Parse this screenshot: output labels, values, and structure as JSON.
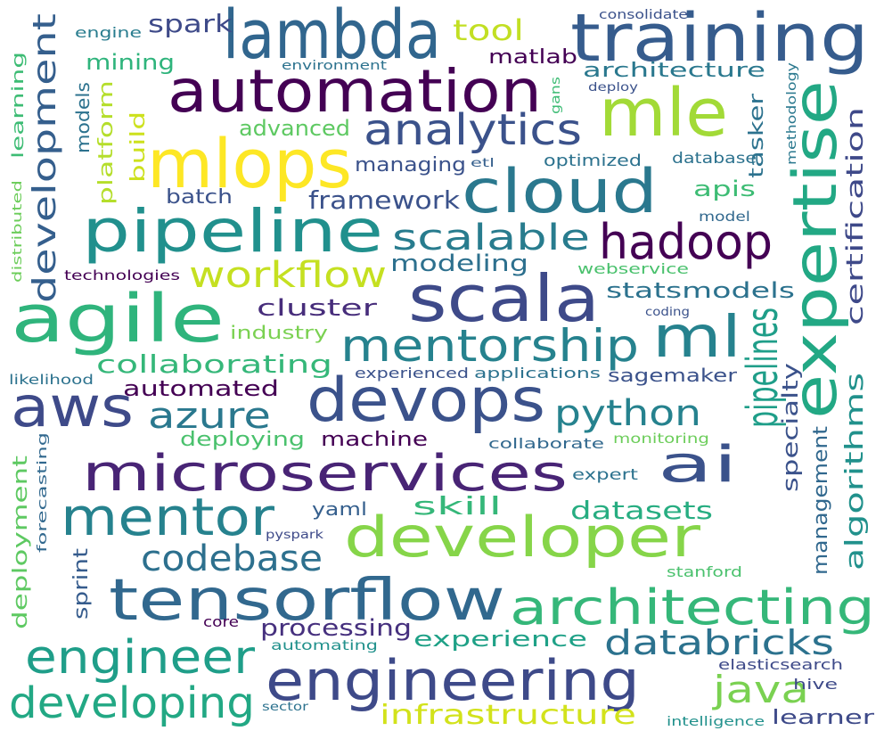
{
  "words": [
    {
      "text": "training",
      "color": "#365c8d"
    },
    {
      "text": "lambda",
      "color": "#31668e"
    },
    {
      "text": "automation",
      "color": "#440154"
    },
    {
      "text": "mle",
      "color": "#a2da37"
    },
    {
      "text": "mlops",
      "color": "#fde725"
    },
    {
      "text": "expertise",
      "color": "#22a884"
    },
    {
      "text": "cloud",
      "color": "#2a788e"
    },
    {
      "text": "analytics",
      "color": "#3b528b"
    },
    {
      "text": "pipeline",
      "color": "#21908d"
    },
    {
      "text": "hadoop",
      "color": "#440154"
    },
    {
      "text": "scala",
      "color": "#3e4a89"
    },
    {
      "text": "agile",
      "color": "#2fb47c"
    },
    {
      "text": "ml",
      "color": "#26828e"
    },
    {
      "text": "mentorship",
      "color": "#26828e"
    },
    {
      "text": "devops",
      "color": "#3b528b"
    },
    {
      "text": "aws",
      "color": "#3e4a89"
    },
    {
      "text": "pipelines",
      "color": "#1f9e89"
    },
    {
      "text": "microservices",
      "color": "#482475"
    },
    {
      "text": "ai",
      "color": "#3b528b"
    },
    {
      "text": "mentor",
      "color": "#26828e"
    },
    {
      "text": "developer",
      "color": "#86d549"
    },
    {
      "text": "tensorflow",
      "color": "#31688e"
    },
    {
      "text": "architecting",
      "color": "#35b779"
    },
    {
      "text": "engineering",
      "color": "#3e4a89"
    },
    {
      "text": "engineer",
      "color": "#1f9e89"
    },
    {
      "text": "developing",
      "color": "#22a884"
    },
    {
      "text": "databricks",
      "color": "#2c728e"
    },
    {
      "text": "java",
      "color": "#7ad151"
    },
    {
      "text": "infrastructure",
      "color": "#d2e21b"
    },
    {
      "text": "workflow",
      "color": "#c5e021"
    },
    {
      "text": "scalable",
      "color": "#287c8e"
    },
    {
      "text": "python",
      "color": "#26828e"
    },
    {
      "text": "azure",
      "color": "#2a788e"
    },
    {
      "text": "codebase",
      "color": "#2d708e"
    },
    {
      "text": "development",
      "color": "#355f8d"
    },
    {
      "text": "collaborating",
      "color": "#35b779"
    },
    {
      "text": "framework",
      "color": "#3b528b"
    },
    {
      "text": "modeling",
      "color": "#2d708e"
    },
    {
      "text": "statsmodels",
      "color": "#2c728e"
    },
    {
      "text": "cluster",
      "color": "#472d7b"
    },
    {
      "text": "certification",
      "color": "#3e4989"
    },
    {
      "text": "algorithms",
      "color": "#21918c"
    },
    {
      "text": "management",
      "color": "#31688e"
    },
    {
      "text": "specialty",
      "color": "#3b528b"
    },
    {
      "text": "datasets",
      "color": "#27ad81"
    },
    {
      "text": "skill",
      "color": "#35b779"
    },
    {
      "text": "yaml",
      "color": "#355f8d"
    },
    {
      "text": "processing",
      "color": "#46307e"
    },
    {
      "text": "experience",
      "color": "#1fa187"
    },
    {
      "text": "deployment",
      "color": "#5ec962"
    },
    {
      "text": "sprint",
      "color": "#365c8d"
    },
    {
      "text": "automated",
      "color": "#440154"
    },
    {
      "text": "deploying",
      "color": "#4ac16d"
    },
    {
      "text": "machine",
      "color": "#440154"
    },
    {
      "text": "spark",
      "color": "#3e4a89"
    },
    {
      "text": "tool",
      "color": "#c2df23"
    },
    {
      "text": "mining",
      "color": "#2fb47c"
    },
    {
      "text": "matlab",
      "color": "#440154"
    },
    {
      "text": "architecture",
      "color": "#2a788e"
    },
    {
      "text": "advanced",
      "color": "#5ec962"
    },
    {
      "text": "models",
      "color": "#2c728e"
    },
    {
      "text": "platform",
      "color": "#b5de2b"
    },
    {
      "text": "build",
      "color": "#cde11d"
    },
    {
      "text": "managing",
      "color": "#3b528b"
    },
    {
      "text": "batch",
      "color": "#3b528b"
    },
    {
      "text": "apis",
      "color": "#3dbc74"
    },
    {
      "text": "tasker",
      "color": "#2c728e"
    },
    {
      "text": "industry",
      "color": "#7ad151"
    },
    {
      "text": "sagemaker",
      "color": "#3b528b"
    },
    {
      "text": "learner",
      "color": "#3e4a89"
    },
    {
      "text": "learning",
      "color": "#3dbc74"
    },
    {
      "text": "engine",
      "color": "#287c8e"
    },
    {
      "text": "environment",
      "color": "#2c728e"
    },
    {
      "text": "consolidate",
      "color": "#3b528b"
    },
    {
      "text": "gans",
      "color": "#3dbc74"
    },
    {
      "text": "deploy",
      "color": "#3b528b"
    },
    {
      "text": "methodology",
      "color": "#2a788e"
    },
    {
      "text": "etl",
      "color": "#355f8d"
    },
    {
      "text": "optimized",
      "color": "#2c728e"
    },
    {
      "text": "database",
      "color": "#2c728e"
    },
    {
      "text": "model",
      "color": "#31688e"
    },
    {
      "text": "webservice",
      "color": "#4ac16d"
    },
    {
      "text": "technologies",
      "color": "#440154"
    },
    {
      "text": "distributed",
      "color": "#6ccd5a"
    },
    {
      "text": "coding",
      "color": "#3b528b"
    },
    {
      "text": "likelihood",
      "color": "#2c728e"
    },
    {
      "text": "experienced",
      "color": "#3b528b"
    },
    {
      "text": "applications",
      "color": "#2c728e"
    },
    {
      "text": "collaborate",
      "color": "#31688e"
    },
    {
      "text": "monitoring",
      "color": "#6ccd5a"
    },
    {
      "text": "expert",
      "color": "#2c728e"
    },
    {
      "text": "forecasting",
      "color": "#31688e"
    },
    {
      "text": "pyspark",
      "color": "#3e4a89"
    },
    {
      "text": "stanford",
      "color": "#4ac16d"
    },
    {
      "text": "core",
      "color": "#440154"
    },
    {
      "text": "automating",
      "color": "#21918c"
    },
    {
      "text": "elasticsearch",
      "color": "#3e4a89"
    },
    {
      "text": "hive",
      "color": "#3e4a89"
    },
    {
      "text": "sector",
      "color": "#2c728e"
    },
    {
      "text": "intelligence",
      "color": "#21918c"
    }
  ]
}
